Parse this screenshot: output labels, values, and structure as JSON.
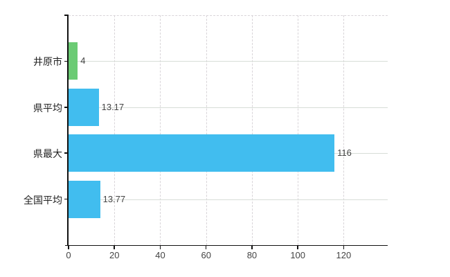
{
  "chart_data": {
    "type": "bar",
    "orientation": "horizontal",
    "title": "",
    "xlabel": "",
    "ylabel": "",
    "categories": [
      "井原市",
      "県平均",
      "県最大",
      "全国平均"
    ],
    "values": [
      4,
      13.17,
      116,
      13.77
    ],
    "value_labels": [
      "4",
      "13.17",
      "116",
      "13.77"
    ],
    "bar_colors": [
      "#6bcb74",
      "#41bdef",
      "#41bdef",
      "#41bdef"
    ],
    "xlim": [
      0,
      139.2
    ],
    "x_ticks": [
      0,
      20,
      40,
      60,
      80,
      100,
      120
    ],
    "x_tick_labels": [
      "0",
      "20",
      "40",
      "60",
      "80",
      "100",
      "120"
    ],
    "grid": "on",
    "legend": "none"
  },
  "colors": {
    "background": "#ffffff",
    "bar_blue": "#41bdef",
    "bar_green": "#6bcb74",
    "axis": "#111111",
    "grid_horizontal": "#d7ddd7",
    "grid_vertical": "#d8d4d8",
    "category_label": "#222222",
    "tick_label": "#444444",
    "value_label": "#444444"
  }
}
